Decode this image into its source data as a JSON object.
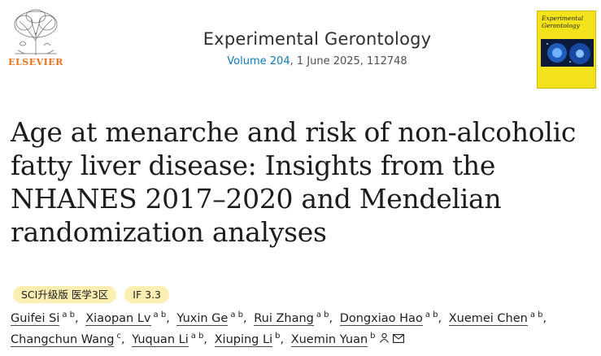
{
  "publisher": {
    "name": "ELSEVIER",
    "colors": {
      "brand": "#e9711c"
    }
  },
  "journal": {
    "title": "Experimental Gerontology",
    "volume_link": "Volume 204",
    "issue_rest": ", 1 June 2025, 112748",
    "cover_title_line1": "Experimental",
    "cover_title_line2": "Gerontology",
    "cover_color": "#f4e31a"
  },
  "article": {
    "title_line1": "Age at menarche and risk of non-alcoholic",
    "title_line2": "fatty liver disease: Insights from the",
    "title_line3": "NHANES 2017–2020 and Mendelian",
    "title_line4": "randomization analyses"
  },
  "badges": {
    "sci": "SCI升级版 医学3区",
    "impact": "IF 3.3"
  },
  "authors": [
    {
      "name": "Guifei Si",
      "sup": "a b"
    },
    {
      "name": "Xiaopan Lv",
      "sup": "a b"
    },
    {
      "name": "Yuxin Ge",
      "sup": "a b"
    },
    {
      "name": "Rui Zhang",
      "sup": "a b"
    },
    {
      "name": "Dongxiao Hao",
      "sup": "a b"
    },
    {
      "name": "Xuemei Chen",
      "sup": "a b"
    },
    {
      "name": "Changchun Wang",
      "sup": "c"
    },
    {
      "name": "Yuquan Li",
      "sup": "a b"
    },
    {
      "name": "Xiuping Li",
      "sup": "b"
    },
    {
      "name": "Xuemin Yuan",
      "sup": "b",
      "icons": [
        "person-icon",
        "email-icon"
      ]
    }
  ],
  "separator": ","
}
